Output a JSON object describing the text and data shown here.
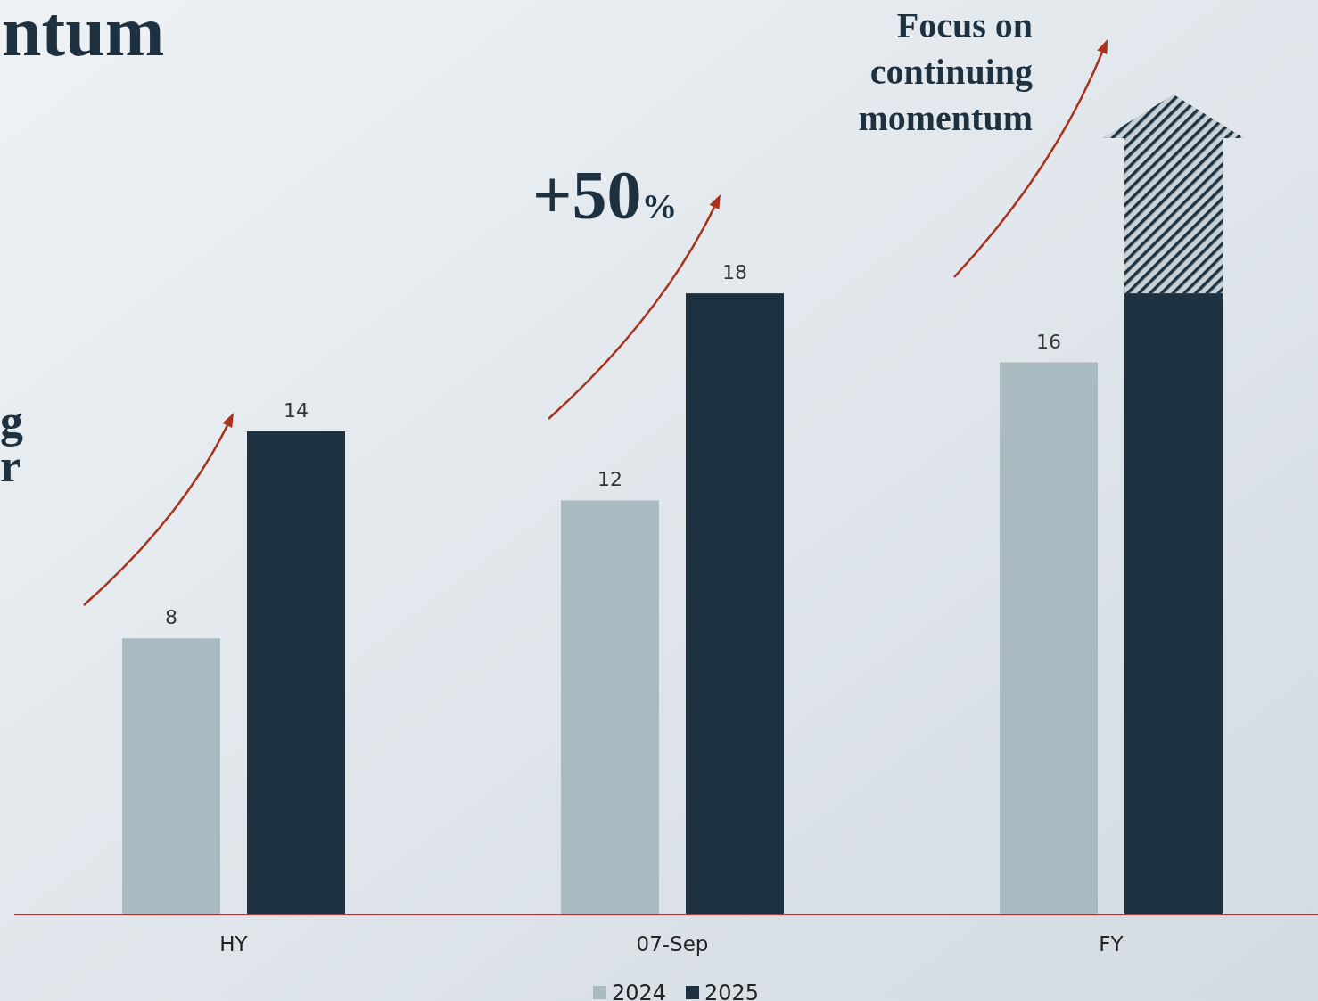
{
  "chart_data": {
    "type": "bar",
    "title": "ntum",
    "categories": [
      "HY",
      "07-Sep",
      "FY"
    ],
    "series": [
      {
        "name": "2024",
        "color": "#aabac1",
        "values": [
          8,
          12,
          16
        ],
        "value_labels": [
          "8",
          "12",
          "16"
        ]
      },
      {
        "name": "2025",
        "color": "#1e3140",
        "values": [
          14,
          18,
          18
        ],
        "value_labels": [
          "14",
          "18",
          null
        ]
      }
    ],
    "ylim": [
      0,
      26.5
    ],
    "tick_labels": "x",
    "legend": "bottom",
    "grid": false,
    "annotations": [
      "+50%",
      "Focus on continuing momentum",
      "g",
      "r"
    ]
  }
}
